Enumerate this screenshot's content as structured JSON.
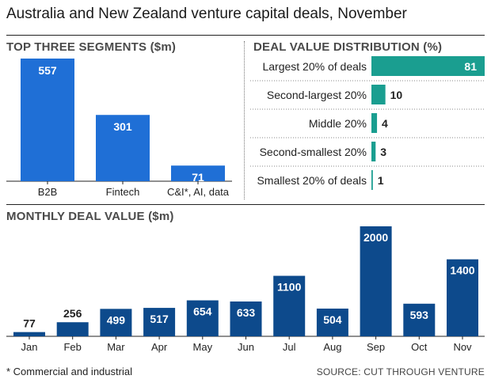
{
  "title": "Australia and New Zealand venture capital deals, November",
  "footnote": "* Commercial and industrial",
  "source": "SOURCE: CUT THROUGH VENTURE",
  "colors": {
    "segment_bar": "#1f6fd6",
    "distribution_bar": "#1a9e90",
    "monthly_bar": "#0d4a8c",
    "monthly_bar_dark": "#0a3f7a"
  },
  "chart_data": [
    {
      "type": "bar",
      "title": "TOP THREE SEGMENTS ($m)",
      "categories": [
        "B2B",
        "Fintech",
        "C&I*, AI, data"
      ],
      "values": [
        557,
        301,
        71
      ],
      "ylim": [
        0,
        557
      ]
    },
    {
      "type": "bar",
      "orientation": "horizontal",
      "title": "DEAL VALUE DISTRIBUTION (%)",
      "categories": [
        "Largest 20% of deals",
        "Second-largest 20%",
        "Middle 20%",
        "Second-smallest 20%",
        "Smallest 20% of deals"
      ],
      "values": [
        81,
        10,
        4,
        3,
        1
      ],
      "xlim": [
        0,
        81
      ]
    },
    {
      "type": "bar",
      "title": "MONTHLY DEAL VALUE ($m)",
      "categories": [
        "Jan",
        "Feb",
        "Mar",
        "Apr",
        "May",
        "Jun",
        "Jul",
        "Aug",
        "Sep",
        "Oct",
        "Nov"
      ],
      "values": [
        77,
        256,
        499,
        517,
        654,
        633,
        1100,
        504,
        2000,
        593,
        1400
      ],
      "ylim": [
        0,
        2000
      ]
    }
  ]
}
